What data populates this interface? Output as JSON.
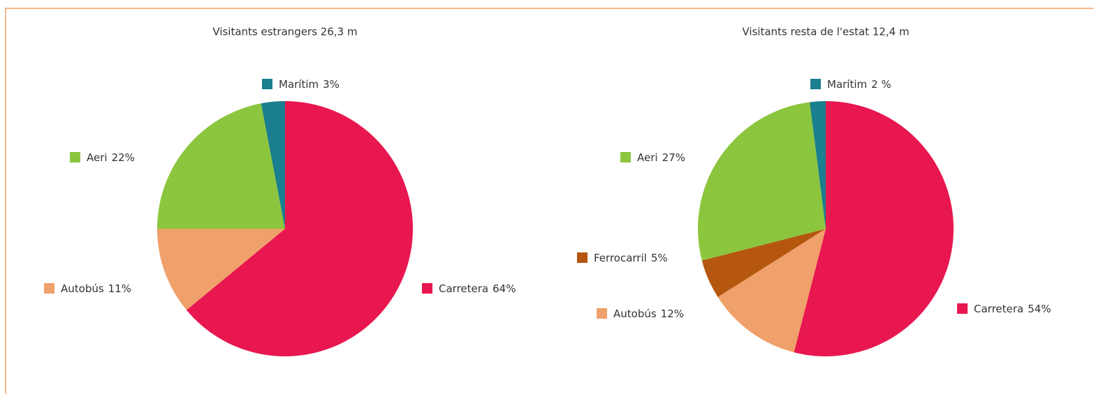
{
  "chart_data": [
    {
      "type": "pie",
      "title": "Visitants estrangers 26,3 m",
      "categories": [
        "Carretera",
        "Autobús",
        "Aeri",
        "Marítim"
      ],
      "values": [
        64,
        11,
        22,
        3
      ],
      "value_labels": [
        "64%",
        "11%",
        "22%",
        "3%"
      ],
      "colors": [
        "#e8174f",
        "#f0a06a",
        "#8cc63f",
        "#1a7f8e"
      ]
    },
    {
      "type": "pie",
      "title": "Visitants resta de l'estat 12,4 m",
      "categories": [
        "Carretera",
        "Autobús",
        "Ferrocarril",
        "Aeri",
        "Marítim"
      ],
      "values": [
        54,
        12,
        5,
        27,
        2
      ],
      "value_labels": [
        "54%",
        "12%",
        "5%",
        "27%",
        "2 %"
      ],
      "colors": [
        "#e8174f",
        "#f0a06a",
        "#b5570f",
        "#8cc63f",
        "#1a7f8e"
      ]
    }
  ]
}
